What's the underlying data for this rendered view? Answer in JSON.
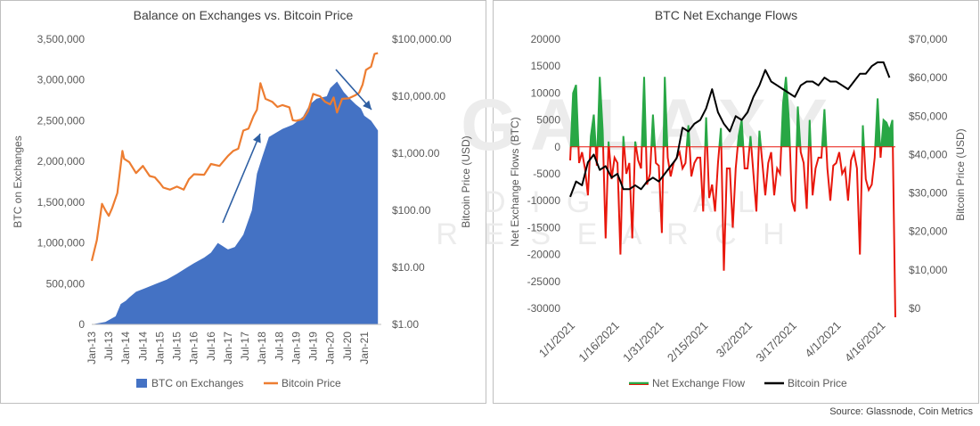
{
  "watermark": {
    "line1": "GALAXY",
    "line2": "D I G I T A L",
    "line3": "R E S E A R C H"
  },
  "source": "Source: Glassnode, Coin Metrics",
  "colors": {
    "area": "#4472c4",
    "price_orange": "#ed7d31",
    "flow_green": "#28a745",
    "flow_red": "#e8170c",
    "price_black": "#000000",
    "arrow": "#2e5fa3"
  },
  "chart_data": [
    {
      "type": "area",
      "title": "Balance on Exchanges vs. Bitcoin Price",
      "ylabel": "BTC on Exchanges",
      "y2label": "Bitcoin Price (USD)",
      "ylim": [
        0,
        3500000
      ],
      "y_ticks": [
        "0",
        "500,000",
        "1,000,000",
        "1,500,000",
        "2,000,000",
        "2,500,000",
        "3,000,000",
        "3,500,000"
      ],
      "y2_log_range": [
        1,
        100000
      ],
      "y2_ticks": [
        "$1.00",
        "$10.00",
        "$100.00",
        "$1,000.00",
        "$10,000.00",
        "$100,000.00"
      ],
      "x_range": [
        2013.0,
        2021.5
      ],
      "x_ticks": [
        "Jan-13",
        "Jul-13",
        "Jan-14",
        "Jul-14",
        "Jan-15",
        "Jul-15",
        "Jan-16",
        "Jul-16",
        "Jan-17",
        "Jul-17",
        "Jan-18",
        "Jul-18",
        "Jan-19",
        "Jul-19",
        "Jan-20",
        "Jul-20",
        "Jan-21"
      ],
      "x_tick_values": [
        2013.0,
        2013.5,
        2014.0,
        2014.5,
        2015.0,
        2015.5,
        2016.0,
        2016.5,
        2017.0,
        2017.5,
        2018.0,
        2018.5,
        2019.0,
        2019.5,
        2020.0,
        2020.5,
        2021.0
      ],
      "legend": [
        "BTC on Exchanges",
        "Bitcoin Price"
      ],
      "legend_position": "bottom",
      "series": [
        {
          "name": "BTC on Exchanges",
          "x": [
            2013.0,
            2013.4,
            2013.7,
            2013.85,
            2014.0,
            2014.1,
            2014.3,
            2014.6,
            2014.9,
            2015.2,
            2015.5,
            2015.8,
            2016.0,
            2016.3,
            2016.5,
            2016.7,
            2016.85,
            2017.0,
            2017.2,
            2017.45,
            2017.7,
            2017.85,
            2018.0,
            2018.2,
            2018.4,
            2018.6,
            2018.9,
            2019.0,
            2019.2,
            2019.4,
            2019.6,
            2019.9,
            2020.0,
            2020.2,
            2020.4,
            2020.55,
            2020.75,
            2020.9,
            2021.0,
            2021.2,
            2021.4
          ],
          "values": [
            0,
            30000,
            100000,
            250000,
            290000,
            330000,
            400000,
            450000,
            500000,
            550000,
            620000,
            700000,
            750000,
            820000,
            880000,
            1000000,
            960000,
            920000,
            950000,
            1100000,
            1400000,
            1850000,
            2050000,
            2300000,
            2350000,
            2400000,
            2450000,
            2480000,
            2550000,
            2700000,
            2770000,
            2800000,
            2900000,
            2980000,
            2850000,
            2780000,
            2700000,
            2650000,
            2560000,
            2500000,
            2380000
          ]
        },
        {
          "name": "Bitcoin Price",
          "x": [
            2013.0,
            2013.15,
            2013.3,
            2013.4,
            2013.5,
            2013.6,
            2013.75,
            2013.9,
            2013.95,
            2014.1,
            2014.3,
            2014.5,
            2014.7,
            2014.85,
            2015.0,
            2015.1,
            2015.3,
            2015.5,
            2015.7,
            2015.85,
            2016.0,
            2016.3,
            2016.5,
            2016.75,
            2017.0,
            2017.15,
            2017.3,
            2017.45,
            2017.6,
            2017.75,
            2017.85,
            2017.95,
            2018.1,
            2018.3,
            2018.45,
            2018.6,
            2018.8,
            2018.9,
            2019.0,
            2019.2,
            2019.35,
            2019.5,
            2019.7,
            2019.85,
            2020.0,
            2020.1,
            2020.2,
            2020.35,
            2020.55,
            2020.75,
            2020.85,
            2020.95,
            2021.05,
            2021.2,
            2021.3,
            2021.4
          ],
          "values": [
            13,
            30,
            130,
            100,
            80,
            110,
            200,
            1100,
            800,
            700,
            450,
            600,
            400,
            380,
            300,
            250,
            230,
            260,
            230,
            350,
            430,
            420,
            650,
            600,
            900,
            1100,
            1200,
            2500,
            2700,
            4500,
            5800,
            17000,
            9000,
            8000,
            6500,
            7000,
            6400,
            3800,
            3700,
            4000,
            5500,
            11000,
            10000,
            8000,
            7200,
            9500,
            5200,
            9000,
            9200,
            10500,
            11500,
            16000,
            29000,
            33000,
            55000,
            57000
          ]
        }
      ]
    },
    {
      "type": "line",
      "title": "BTC Net Exchange Flows",
      "ylabel": "Net Exchange Flows (BTC)",
      "y2label": "Bitcoin Price (USD)",
      "ylim": [
        -30000,
        20000
      ],
      "y_ticks": [
        "-30000",
        "-25000",
        "-20000",
        "-15000",
        "-10000",
        "-5000",
        "0",
        "5000",
        "10000",
        "15000",
        "20000"
      ],
      "y2lim": [
        0,
        70000
      ],
      "y2_ticks": [
        "$0",
        "$10,000",
        "$20,000",
        "$30,000",
        "$40,000",
        "$50,000",
        "$60,000",
        "$70,000"
      ],
      "x_range": [
        0,
        110
      ],
      "x_ticks": [
        "1/1/2021",
        "1/16/2021",
        "1/31/2021",
        "2/15/2021",
        "3/2/2021",
        "3/17/2021",
        "4/1/2021",
        "4/16/2021"
      ],
      "x_tick_values": [
        0,
        15,
        30,
        45,
        60,
        75,
        90,
        105
      ],
      "legend": [
        "Net Exchange Flow",
        "Bitcoin Price"
      ],
      "legend_position": "bottom",
      "series": [
        {
          "name": "Net Exchange Flow",
          "x": [
            0,
            1,
            2,
            3,
            4,
            5,
            6,
            7,
            8,
            9,
            10,
            11,
            12,
            13,
            14,
            15,
            16,
            17,
            18,
            19,
            20,
            21,
            22,
            23,
            24,
            25,
            26,
            27,
            28,
            29,
            30,
            31,
            32,
            33,
            34,
            35,
            36,
            37,
            38,
            39,
            40,
            41,
            42,
            43,
            44,
            45,
            46,
            47,
            48,
            49,
            50,
            51,
            52,
            53,
            54,
            55,
            56,
            57,
            58,
            59,
            60,
            61,
            62,
            63,
            64,
            65,
            66,
            67,
            68,
            69,
            70,
            71,
            72,
            73,
            74,
            75,
            76,
            77,
            78,
            79,
            80,
            81,
            82,
            83,
            84,
            85,
            86,
            87,
            88,
            89,
            90,
            91,
            92,
            93,
            94,
            95,
            96,
            97,
            98,
            99,
            100,
            101,
            102,
            103,
            104,
            105,
            106,
            107,
            108,
            109,
            110
          ],
          "values": [
            -2500,
            10000,
            11500,
            -3000,
            -1000,
            -4000,
            -9000,
            2000,
            6000,
            -3500,
            13000,
            3000,
            -17000,
            1000,
            -6000,
            -2000,
            -3000,
            -20000,
            2000,
            -5000,
            -3000,
            -17000,
            1000,
            -2500,
            -4000,
            13000,
            -7000,
            -5000,
            6000,
            -3000,
            -3500,
            -16000,
            13000,
            -2000,
            -5500,
            -3000,
            -2000,
            -1000,
            -4000,
            -3000,
            4000,
            -5500,
            -3000,
            -2000,
            -2000,
            -12000,
            5500,
            -9500,
            -7000,
            -12000,
            -3000,
            3500,
            -23000,
            -4000,
            -4000,
            -15000,
            -4000,
            2000,
            5000,
            -4000,
            -4000,
            2000,
            -5000,
            -12000,
            3000,
            -3000,
            -9000,
            -3000,
            -1000,
            -9000,
            -4000,
            -5000,
            8000,
            13000,
            5000,
            -10000,
            -12000,
            7500,
            -1000,
            -3000,
            -11500,
            5000,
            -9000,
            -4000,
            -2000,
            -2000,
            7000,
            -4000,
            -10000,
            -3500,
            -3000,
            -1000,
            -5000,
            -4000,
            -10000,
            -2500,
            -1000,
            -4000,
            -20000,
            4000,
            -6000,
            -8000,
            -7000,
            -2000,
            9000,
            -2000,
            5000,
            4500,
            3000,
            5000,
            -32000
          ]
        },
        {
          "name": "Bitcoin Price",
          "x": [
            0,
            2,
            4,
            6,
            8,
            10,
            12,
            14,
            16,
            18,
            20,
            22,
            24,
            26,
            28,
            30,
            32,
            34,
            36,
            38,
            40,
            42,
            44,
            46,
            48,
            50,
            52,
            54,
            56,
            58,
            60,
            62,
            64,
            66,
            68,
            70,
            72,
            74,
            76,
            78,
            80,
            82,
            84,
            86,
            88,
            90,
            92,
            94,
            96,
            98,
            100,
            102,
            104,
            106,
            108
          ],
          "values": [
            29000,
            33000,
            32000,
            38000,
            40000,
            36000,
            37000,
            34000,
            35000,
            31000,
            31000,
            32000,
            31000,
            33000,
            34000,
            33000,
            35000,
            37000,
            39000,
            47000,
            46000,
            48000,
            49000,
            52000,
            57000,
            51000,
            48000,
            46000,
            50000,
            49000,
            51000,
            55000,
            58000,
            62000,
            59000,
            58000,
            57000,
            56000,
            55000,
            58000,
            59000,
            59000,
            58000,
            60000,
            59000,
            59000,
            58000,
            57000,
            59000,
            61000,
            61000,
            63000,
            64000,
            64000,
            60000
          ]
        }
      ]
    }
  ]
}
